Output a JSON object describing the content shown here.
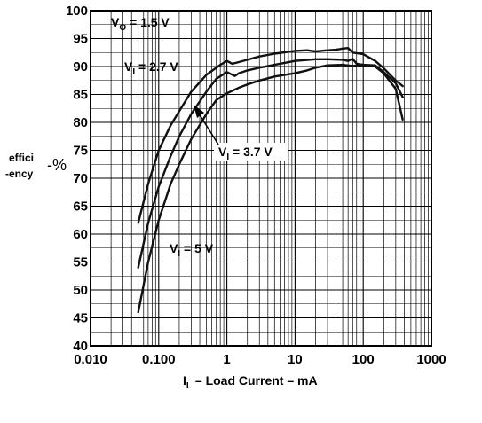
{
  "chart_data": {
    "type": "line",
    "x_scale": "log",
    "xlim": [
      0.01,
      1000
    ],
    "ylim": [
      40,
      100
    ],
    "grid": true,
    "x_ticks": [
      "0.010",
      "0.100",
      "1",
      "10",
      "100",
      "1000"
    ],
    "y_ticks": [
      "40",
      "45",
      "50",
      "55",
      "60",
      "65",
      "70",
      "75",
      "80",
      "85",
      "90",
      "95",
      "100"
    ],
    "xlabel": {
      "main": "I",
      "sub": "L",
      "rest": " –  Load Current  – mA"
    },
    "ylabel": {
      "line1": "effici",
      "line2": "-ency",
      "unit": "-%"
    },
    "annotations": [
      {
        "id": "vo",
        "main": "V",
        "sub": "O",
        "rest": " = 1.5 V"
      },
      {
        "id": "vi27",
        "main": "V",
        "sub": "I",
        "rest": " = 2.7 V"
      },
      {
        "id": "vi37",
        "main": "V",
        "sub": "I",
        "rest": " = 3.7 V"
      },
      {
        "id": "vi5",
        "main": "V",
        "sub": "I",
        "rest": " = 5 V"
      }
    ],
    "series": [
      {
        "name": "VI = 2.7 V",
        "x": [
          0.05,
          0.07,
          0.1,
          0.15,
          0.2,
          0.3,
          0.5,
          0.8,
          1.0,
          1.2,
          1.5,
          2,
          3,
          5,
          10,
          15,
          20,
          30,
          40,
          50,
          60,
          70,
          100,
          150,
          200,
          300,
          380
        ],
        "y": [
          62,
          69,
          75,
          79.5,
          82,
          85.5,
          88.5,
          90.3,
          91,
          90.5,
          90.8,
          91.2,
          91.8,
          92.3,
          92.8,
          92.9,
          92.7,
          92.9,
          93,
          93.2,
          93.3,
          92.5,
          92.2,
          91,
          89.7,
          87.5,
          86.5
        ]
      },
      {
        "name": "VI = 3.7 V",
        "x": [
          0.05,
          0.07,
          0.1,
          0.15,
          0.2,
          0.3,
          0.5,
          0.7,
          1.0,
          1.3,
          1.5,
          2,
          3,
          5,
          10,
          20,
          30,
          50,
          60,
          70,
          80,
          100,
          150,
          200,
          300,
          380
        ],
        "y": [
          54,
          62,
          68.5,
          74,
          77.5,
          81.5,
          85.5,
          87.8,
          89,
          88.3,
          88.8,
          89.3,
          89.8,
          90.3,
          91,
          91.3,
          91.3,
          91.2,
          91,
          91.4,
          90.5,
          90.3,
          90.2,
          89,
          87,
          84.5
        ]
      },
      {
        "name": "VI = 5 V",
        "x": [
          0.05,
          0.07,
          0.1,
          0.15,
          0.2,
          0.3,
          0.5,
          0.7,
          1.0,
          1.5,
          2,
          3,
          5,
          10,
          15,
          20,
          30,
          50,
          70,
          100,
          150,
          200,
          300,
          380
        ],
        "y": [
          46,
          55,
          62.5,
          69,
          72.5,
          77,
          81.5,
          84,
          85.2,
          86.2,
          86.8,
          87.5,
          88.2,
          88.8,
          89.3,
          89.8,
          90.2,
          90.3,
          90.1,
          90.3,
          90,
          88.8,
          86,
          80.5
        ]
      }
    ]
  }
}
